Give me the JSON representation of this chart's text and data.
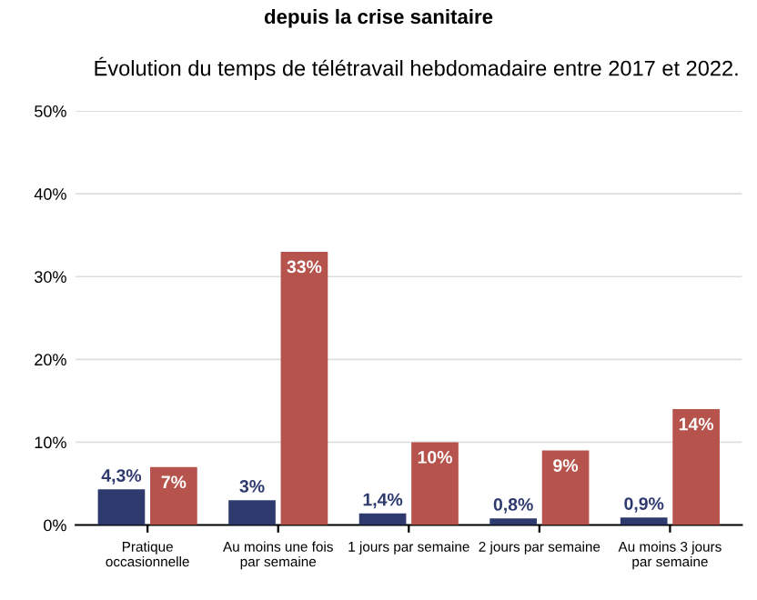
{
  "chart_data": {
    "type": "bar",
    "title": "depuis la crise sanitaire",
    "subtitle": "Évolution du temps de télétravail hebdomadaire entre 2017 et 2022.",
    "categories": [
      "Pratique\noccasionnelle",
      "Au moins une fois\npar semaine",
      "1 jours par semaine",
      "2 jours par semaine",
      "Au moins 3 jours\npar semaine"
    ],
    "series": [
      {
        "color": "#2e3a6e",
        "values": [
          4.3,
          3,
          1.4,
          0.8,
          0.9
        ],
        "value_labels": [
          "4,3%",
          "3%",
          "1,4%",
          "0,8%",
          "0,9%"
        ]
      },
      {
        "color": "#b5534c",
        "values": [
          7,
          33,
          10,
          9,
          14
        ],
        "value_labels": [
          "7%",
          "33%",
          "10%",
          "9%",
          "14%"
        ]
      }
    ],
    "ylim": [
      0,
      50
    ],
    "yticks": [
      {
        "value": 0,
        "label": "0%"
      },
      {
        "value": 10,
        "label": "10%"
      },
      {
        "value": 20,
        "label": "20%"
      },
      {
        "value": 30,
        "label": "30%"
      },
      {
        "value": 40,
        "label": "40%"
      },
      {
        "value": 50,
        "label": "50%"
      }
    ],
    "grid": "y",
    "legend": false
  }
}
